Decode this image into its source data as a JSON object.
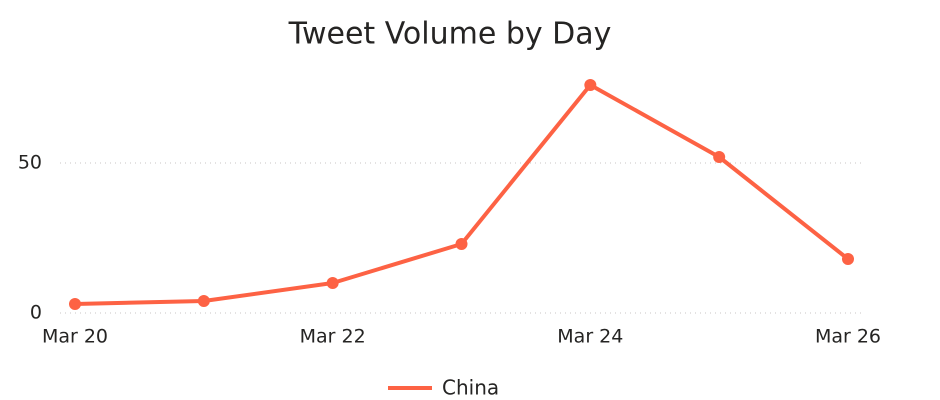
{
  "chart_data": {
    "type": "line",
    "title": "Tweet Volume by Day",
    "categories": [
      "Mar 20",
      null,
      "Mar 22",
      null,
      "Mar 24",
      null,
      "Mar 26"
    ],
    "series": [
      {
        "name": "China",
        "color": "#fd6244",
        "values": [
          3,
          4,
          10,
          23,
          76,
          52,
          18
        ]
      }
    ],
    "ylim": [
      0,
      80
    ],
    "yticks": [
      0,
      50
    ],
    "grid": true,
    "legend": "bottom"
  }
}
